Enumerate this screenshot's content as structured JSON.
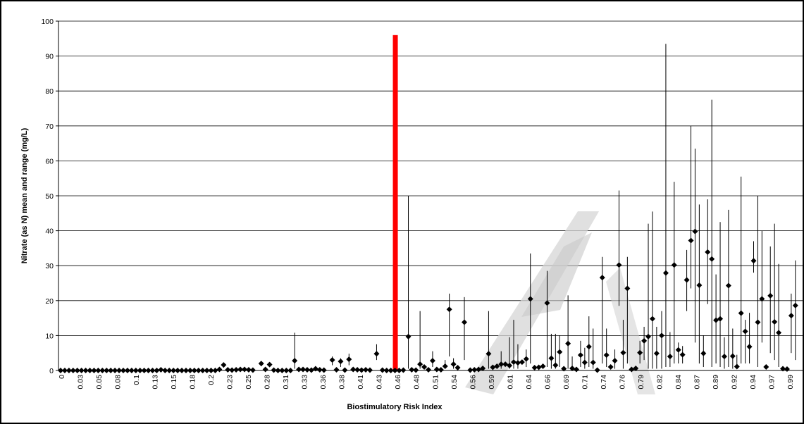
{
  "chart_data": {
    "type": "scatter",
    "title": "",
    "xlabel": "Biostimulatory Risk Index",
    "ylabel": "Nitrate (as N) mean and range (mg/L)",
    "ylim": [
      0,
      100
    ],
    "yticks": [
      0,
      10,
      20,
      30,
      40,
      50,
      60,
      70,
      80,
      90,
      100
    ],
    "grid": "horizontal",
    "legend": "none",
    "marker": "diamond",
    "error_bars": "min-max range",
    "threshold_line": {
      "x": 0.4,
      "top": 96,
      "color": "#ff0000"
    },
    "x_tick_labels": [
      "0",
      "0.03",
      "0.05",
      "0.08",
      "0.1",
      "0.13",
      "0.15",
      "0.18",
      "0.2",
      "0.23",
      "0.25",
      "0.28",
      "0.31",
      "0.33",
      "0.36",
      "0.38",
      "0.41",
      "0.43",
      "0.46",
      "0.48",
      "0.51",
      "0.54",
      "0.56",
      "0.59",
      "0.61",
      "0.64",
      "0.66",
      "0.69",
      "0.71",
      "0.74",
      "0.76",
      "0.79",
      "0.82",
      "0.84",
      "0.87",
      "0.89",
      "0.92",
      "0.94",
      "0.97",
      "0.99"
    ],
    "points": [
      {
        "x": 0.0,
        "y": 0
      },
      {
        "x": 0.005,
        "y": 0
      },
      {
        "x": 0.01,
        "y": 0
      },
      {
        "x": 0.015,
        "y": 0
      },
      {
        "x": 0.02,
        "y": 0
      },
      {
        "x": 0.025,
        "y": 0
      },
      {
        "x": 0.03,
        "y": 0
      },
      {
        "x": 0.035,
        "y": 0
      },
      {
        "x": 0.04,
        "y": 0
      },
      {
        "x": 0.045,
        "y": 0
      },
      {
        "x": 0.05,
        "y": 0
      },
      {
        "x": 0.055,
        "y": 0
      },
      {
        "x": 0.06,
        "y": 0
      },
      {
        "x": 0.065,
        "y": 0
      },
      {
        "x": 0.07,
        "y": 0
      },
      {
        "x": 0.075,
        "y": 0
      },
      {
        "x": 0.08,
        "y": 0
      },
      {
        "x": 0.085,
        "y": 0
      },
      {
        "x": 0.09,
        "y": 0
      },
      {
        "x": 0.095,
        "y": 0
      },
      {
        "x": 0.1,
        "y": 0
      },
      {
        "x": 0.105,
        "y": 0
      },
      {
        "x": 0.11,
        "y": 0
      },
      {
        "x": 0.115,
        "y": 0
      },
      {
        "x": 0.12,
        "y": 0.2
      },
      {
        "x": 0.125,
        "y": 0
      },
      {
        "x": 0.13,
        "y": 0
      },
      {
        "x": 0.135,
        "y": 0
      },
      {
        "x": 0.14,
        "y": 0
      },
      {
        "x": 0.145,
        "y": 0
      },
      {
        "x": 0.15,
        "y": 0
      },
      {
        "x": 0.155,
        "y": 0
      },
      {
        "x": 0.16,
        "y": 0
      },
      {
        "x": 0.165,
        "y": 0
      },
      {
        "x": 0.17,
        "y": 0
      },
      {
        "x": 0.175,
        "y": 0
      },
      {
        "x": 0.18,
        "y": 0
      },
      {
        "x": 0.185,
        "y": 0
      },
      {
        "x": 0.19,
        "y": 0.3
      },
      {
        "x": 0.195,
        "y": 1.6,
        "lo": 0.8,
        "hi": 2.0
      },
      {
        "x": 0.2,
        "y": 0.2
      },
      {
        "x": 0.205,
        "y": 0.1
      },
      {
        "x": 0.21,
        "y": 0.2
      },
      {
        "x": 0.215,
        "y": 0.3
      },
      {
        "x": 0.22,
        "y": 0.3
      },
      {
        "x": 0.225,
        "y": 0.2
      },
      {
        "x": 0.23,
        "y": 0.1
      },
      {
        "x": 0.24,
        "y": 2.0,
        "lo": 1.2,
        "hi": 2.6
      },
      {
        "x": 0.245,
        "y": 0.3
      },
      {
        "x": 0.25,
        "y": 1.7,
        "lo": 1.0,
        "hi": 2.2
      },
      {
        "x": 0.255,
        "y": 0.1
      },
      {
        "x": 0.26,
        "y": 0
      },
      {
        "x": 0.265,
        "y": 0
      },
      {
        "x": 0.27,
        "y": 0
      },
      {
        "x": 0.275,
        "y": 0
      },
      {
        "x": 0.28,
        "y": 2.8,
        "lo": 0.5,
        "hi": 10.8
      },
      {
        "x": 0.285,
        "y": 0.3
      },
      {
        "x": 0.29,
        "y": 0.3
      },
      {
        "x": 0.295,
        "y": 0.2
      },
      {
        "x": 0.3,
        "y": 0.1
      },
      {
        "x": 0.305,
        "y": 0.5
      },
      {
        "x": 0.31,
        "y": 0.2
      },
      {
        "x": 0.315,
        "y": 0.1
      },
      {
        "x": 0.325,
        "y": 3.0,
        "lo": 1.5,
        "hi": 4.0
      },
      {
        "x": 0.33,
        "y": 0.2
      },
      {
        "x": 0.335,
        "y": 2.6,
        "lo": 1.0,
        "hi": 3.5
      },
      {
        "x": 0.34,
        "y": 0.1
      },
      {
        "x": 0.345,
        "y": 3.2,
        "lo": 1.5,
        "hi": 4.8
      },
      {
        "x": 0.35,
        "y": 0.3
      },
      {
        "x": 0.355,
        "y": 0.2
      },
      {
        "x": 0.36,
        "y": 0.1
      },
      {
        "x": 0.365,
        "y": 0.2
      },
      {
        "x": 0.37,
        "y": 0.1
      },
      {
        "x": 0.378,
        "y": 4.8,
        "lo": 3.0,
        "hi": 7.5
      },
      {
        "x": 0.385,
        "y": 0.1
      },
      {
        "x": 0.39,
        "y": 0
      },
      {
        "x": 0.395,
        "y": 0
      },
      {
        "x": 0.4,
        "y": 0
      },
      {
        "x": 0.405,
        "y": 0
      },
      {
        "x": 0.41,
        "y": 0.1
      },
      {
        "x": 0.416,
        "y": 9.7,
        "lo": 0.5,
        "hi": 50
      },
      {
        "x": 0.42,
        "y": 0.2
      },
      {
        "x": 0.425,
        "y": 0.1
      },
      {
        "x": 0.43,
        "y": 1.8,
        "lo": 0.5,
        "hi": 17
      },
      {
        "x": 0.435,
        "y": 1.0
      },
      {
        "x": 0.44,
        "y": 0.2
      },
      {
        "x": 0.445,
        "y": 2.8,
        "lo": 1.0,
        "hi": 5.5
      },
      {
        "x": 0.45,
        "y": 0.3
      },
      {
        "x": 0.455,
        "y": 0.2
      },
      {
        "x": 0.46,
        "y": 1.2,
        "lo": 0.5,
        "hi": 3.0
      },
      {
        "x": 0.465,
        "y": 17.5,
        "lo": 4.0,
        "hi": 22
      },
      {
        "x": 0.47,
        "y": 1.8,
        "lo": 0.5,
        "hi": 3.5
      },
      {
        "x": 0.475,
        "y": 0.8
      },
      {
        "x": 0.483,
        "y": 13.8,
        "lo": 3.0,
        "hi": 21
      },
      {
        "x": 0.49,
        "y": 0.1
      },
      {
        "x": 0.495,
        "y": 0.2
      },
      {
        "x": 0.5,
        "y": 0.3
      },
      {
        "x": 0.505,
        "y": 0.6
      },
      {
        "x": 0.512,
        "y": 4.8,
        "lo": 0.5,
        "hi": 17
      },
      {
        "x": 0.517,
        "y": 0.9
      },
      {
        "x": 0.522,
        "y": 1.2
      },
      {
        "x": 0.527,
        "y": 1.8,
        "lo": 0.5,
        "hi": 5.5
      },
      {
        "x": 0.532,
        "y": 1.8
      },
      {
        "x": 0.537,
        "y": 1.4,
        "lo": 0.5,
        "hi": 9.5
      },
      {
        "x": 0.542,
        "y": 2.4,
        "lo": 0.5,
        "hi": 14.5
      },
      {
        "x": 0.547,
        "y": 2.2,
        "lo": 0.5,
        "hi": 7.5
      },
      {
        "x": 0.552,
        "y": 2.4
      },
      {
        "x": 0.557,
        "y": 3.3,
        "lo": 1.0,
        "hi": 6.0
      },
      {
        "x": 0.562,
        "y": 20.5,
        "lo": 2.0,
        "hi": 33.5
      },
      {
        "x": 0.567,
        "y": 0.8
      },
      {
        "x": 0.572,
        "y": 0.9
      },
      {
        "x": 0.577,
        "y": 1.2
      },
      {
        "x": 0.582,
        "y": 19.3,
        "lo": 1.0,
        "hi": 28.5
      },
      {
        "x": 0.587,
        "y": 3.5,
        "lo": 0.5,
        "hi": 10.5
      },
      {
        "x": 0.592,
        "y": 1.5,
        "lo": 0.5,
        "hi": 10.5
      },
      {
        "x": 0.597,
        "y": 5.3,
        "lo": 1.0,
        "hi": 10
      },
      {
        "x": 0.602,
        "y": 0.5
      },
      {
        "x": 0.607,
        "y": 7.7,
        "lo": 0.5,
        "hi": 21.5
      },
      {
        "x": 0.612,
        "y": 0.6,
        "lo": 0.2,
        "hi": 4.0
      },
      {
        "x": 0.617,
        "y": 0.3
      },
      {
        "x": 0.622,
        "y": 4.4,
        "lo": 1.0,
        "hi": 8.5
      },
      {
        "x": 0.627,
        "y": 2.3,
        "lo": 0.5,
        "hi": 6.5
      },
      {
        "x": 0.632,
        "y": 6.8,
        "lo": 1.0,
        "hi": 15.5
      },
      {
        "x": 0.637,
        "y": 2.3,
        "lo": 0.5,
        "hi": 12
      },
      {
        "x": 0.642,
        "y": 0.1
      },
      {
        "x": 0.648,
        "y": 26.6,
        "lo": 2.0,
        "hi": 32.5
      },
      {
        "x": 0.653,
        "y": 4.4,
        "lo": 1.0,
        "hi": 12
      },
      {
        "x": 0.658,
        "y": 1.0
      },
      {
        "x": 0.663,
        "y": 2.8,
        "lo": 0.5,
        "hi": 6.0
      },
      {
        "x": 0.668,
        "y": 30.2,
        "lo": 18.5,
        "hi": 51.5
      },
      {
        "x": 0.673,
        "y": 5.1,
        "lo": 0.5,
        "hi": 14.5
      },
      {
        "x": 0.678,
        "y": 23.5,
        "lo": 2.0,
        "hi": 32.5
      },
      {
        "x": 0.683,
        "y": 0.3
      },
      {
        "x": 0.688,
        "y": 0.6
      },
      {
        "x": 0.693,
        "y": 5.1,
        "lo": 2.0,
        "hi": 8.5
      },
      {
        "x": 0.698,
        "y": 8.5,
        "lo": 3.0,
        "hi": 12.5
      },
      {
        "x": 0.703,
        "y": 9.7,
        "lo": 0.5,
        "hi": 42
      },
      {
        "x": 0.708,
        "y": 14.8,
        "lo": 0.5,
        "hi": 45.5
      },
      {
        "x": 0.713,
        "y": 4.9,
        "lo": 0.5,
        "hi": 12.5
      },
      {
        "x": 0.719,
        "y": 10.0,
        "lo": 0.5,
        "hi": 17
      },
      {
        "x": 0.724,
        "y": 27.9,
        "lo": 1.0,
        "hi": 93.5
      },
      {
        "x": 0.729,
        "y": 4.0,
        "lo": 1.0,
        "hi": 11
      },
      {
        "x": 0.734,
        "y": 30.2,
        "lo": 2.0,
        "hi": 54
      },
      {
        "x": 0.739,
        "y": 5.9,
        "lo": 2.0,
        "hi": 8.0
      },
      {
        "x": 0.744,
        "y": 4.5,
        "lo": 2.0,
        "hi": 7.0
      },
      {
        "x": 0.749,
        "y": 25.9,
        "lo": 17.0,
        "hi": 34.5
      },
      {
        "x": 0.754,
        "y": 37.2,
        "lo": 23.5,
        "hi": 70
      },
      {
        "x": 0.759,
        "y": 39.8,
        "lo": 8.0,
        "hi": 63.5
      },
      {
        "x": 0.764,
        "y": 24.4,
        "lo": 2.0,
        "hi": 47.5
      },
      {
        "x": 0.769,
        "y": 4.9,
        "lo": 1.0,
        "hi": 10
      },
      {
        "x": 0.774,
        "y": 33.9,
        "lo": 19.0,
        "hi": 49
      },
      {
        "x": 0.779,
        "y": 31.9,
        "lo": 1.0,
        "hi": 77.5
      },
      {
        "x": 0.784,
        "y": 14.4,
        "lo": 2.0,
        "hi": 27.5
      },
      {
        "x": 0.789,
        "y": 14.8,
        "lo": 1.0,
        "hi": 42.5
      },
      {
        "x": 0.794,
        "y": 4.0,
        "lo": 0.5,
        "hi": 9.5
      },
      {
        "x": 0.799,
        "y": 24.3,
        "lo": 1.0,
        "hi": 46
      },
      {
        "x": 0.804,
        "y": 4.1,
        "lo": 0.5,
        "hi": 12
      },
      {
        "x": 0.809,
        "y": 1.1,
        "lo": 0.5,
        "hi": 4.5
      },
      {
        "x": 0.814,
        "y": 16.4,
        "lo": 2.0,
        "hi": 55.5
      },
      {
        "x": 0.819,
        "y": 11.2,
        "lo": 2.0,
        "hi": 14.5
      },
      {
        "x": 0.824,
        "y": 6.8,
        "lo": 2.0,
        "hi": 16.5
      },
      {
        "x": 0.829,
        "y": 31.4,
        "lo": 28.0,
        "hi": 37
      },
      {
        "x": 0.834,
        "y": 13.8,
        "lo": 1.0,
        "hi": 50
      },
      {
        "x": 0.839,
        "y": 20.5,
        "lo": 8.0,
        "hi": 40
      },
      {
        "x": 0.844,
        "y": 1.0
      },
      {
        "x": 0.849,
        "y": 21.4,
        "lo": 5.0,
        "hi": 35.5
      },
      {
        "x": 0.854,
        "y": 13.9,
        "lo": 3.0,
        "hi": 42
      },
      {
        "x": 0.859,
        "y": 10.8,
        "lo": 1.0,
        "hi": 30.5
      },
      {
        "x": 0.864,
        "y": 0.5
      },
      {
        "x": 0.869,
        "y": 0.4
      },
      {
        "x": 0.874,
        "y": 15.7,
        "lo": 5.0,
        "hi": 22
      },
      {
        "x": 0.879,
        "y": 18.6,
        "lo": 3.0,
        "hi": 31.5
      }
    ]
  }
}
